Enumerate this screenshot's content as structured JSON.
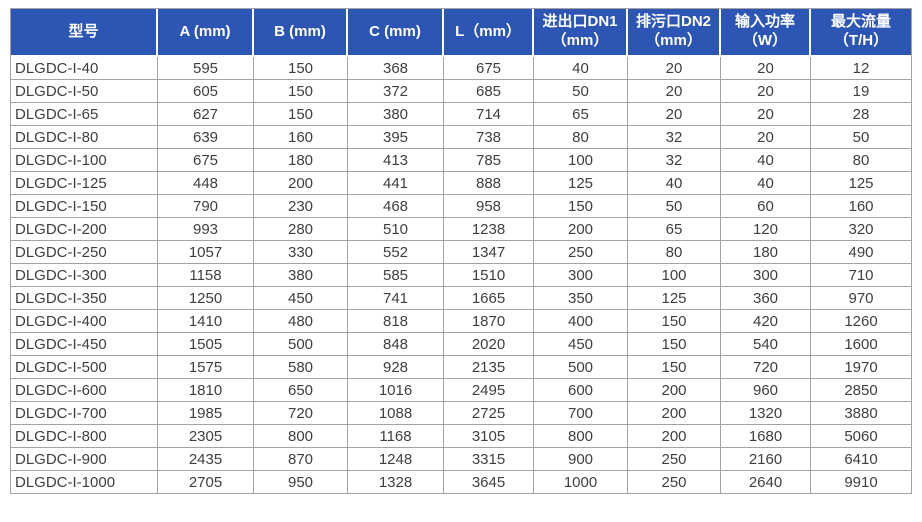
{
  "colors": {
    "header_bg": "#2d55b4",
    "header_text": "#ffffff",
    "grid": "#a3a3a3",
    "body_text": "#3f3f3f",
    "page_bg": "#ffffff"
  },
  "chart_data": {
    "type": "table",
    "columns": [
      {
        "label": "型号",
        "sub": ""
      },
      {
        "label": "A (mm)",
        "sub": ""
      },
      {
        "label": "B (mm)",
        "sub": ""
      },
      {
        "label": "C (mm)",
        "sub": ""
      },
      {
        "label": "L（mm）",
        "sub": ""
      },
      {
        "label": "进出口DN1",
        "sub": "（mm）"
      },
      {
        "label": "排污口DN2",
        "sub": "（mm）"
      },
      {
        "label": "输入功率",
        "sub": "（W）"
      },
      {
        "label": "最大流量",
        "sub": "（T/H）"
      }
    ],
    "rows": [
      [
        "DLGDC-I-40",
        "595",
        "150",
        "368",
        "675",
        "40",
        "20",
        "20",
        "12"
      ],
      [
        "DLGDC-I-50",
        "605",
        "150",
        "372",
        "685",
        "50",
        "20",
        "20",
        "19"
      ],
      [
        "DLGDC-I-65",
        "627",
        "150",
        "380",
        "714",
        "65",
        "20",
        "20",
        "28"
      ],
      [
        "DLGDC-I-80",
        "639",
        "160",
        "395",
        "738",
        "80",
        "32",
        "20",
        "50"
      ],
      [
        "DLGDC-I-100",
        "675",
        "180",
        "413",
        "785",
        "100",
        "32",
        "40",
        "80"
      ],
      [
        "DLGDC-I-125",
        "448",
        "200",
        "441",
        "888",
        "125",
        "40",
        "40",
        "125"
      ],
      [
        "DLGDC-I-150",
        "790",
        "230",
        "468",
        "958",
        "150",
        "50",
        "60",
        "160"
      ],
      [
        "DLGDC-I-200",
        "993",
        "280",
        "510",
        "1238",
        "200",
        "65",
        "120",
        "320"
      ],
      [
        "DLGDC-I-250",
        "1057",
        "330",
        "552",
        "1347",
        "250",
        "80",
        "180",
        "490"
      ],
      [
        "DLGDC-I-300",
        "1158",
        "380",
        "585",
        "1510",
        "300",
        "100",
        "300",
        "710"
      ],
      [
        "DLGDC-I-350",
        "1250",
        "450",
        "741",
        "1665",
        "350",
        "125",
        "360",
        "970"
      ],
      [
        "DLGDC-I-400",
        "1410",
        "480",
        "818",
        "1870",
        "400",
        "150",
        "420",
        "1260"
      ],
      [
        "DLGDC-I-450",
        "1505",
        "500",
        "848",
        "2020",
        "450",
        "150",
        "540",
        "1600"
      ],
      [
        "DLGDC-I-500",
        "1575",
        "580",
        "928",
        "2135",
        "500",
        "150",
        "720",
        "1970"
      ],
      [
        "DLGDC-I-600",
        "1810",
        "650",
        "1016",
        "2495",
        "600",
        "200",
        "960",
        "2850"
      ],
      [
        "DLGDC-I-700",
        "1985",
        "720",
        "1088",
        "2725",
        "700",
        "200",
        "1320",
        "3880"
      ],
      [
        "DLGDC-I-800",
        "2305",
        "800",
        "1168",
        "3105",
        "800",
        "200",
        "1680",
        "5060"
      ],
      [
        "DLGDC-I-900",
        "2435",
        "870",
        "1248",
        "3315",
        "900",
        "250",
        "2160",
        "6410"
      ],
      [
        "DLGDC-I-1000",
        "2705",
        "950",
        "1328",
        "3645",
        "1000",
        "250",
        "2640",
        "9910"
      ]
    ]
  }
}
